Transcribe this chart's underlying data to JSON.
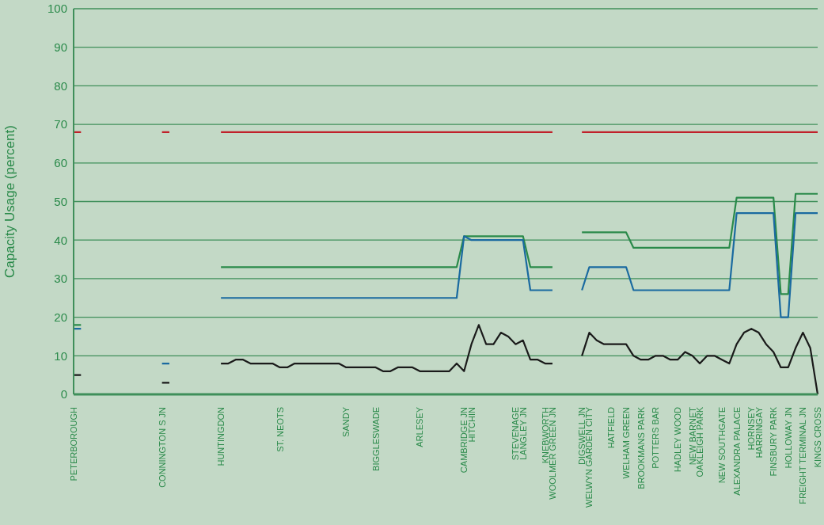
{
  "chart_data": {
    "type": "line",
    "ylabel": "Capacity Usage (percent)",
    "categories": [
      "PETERBOROUGH",
      null,
      null,
      null,
      null,
      null,
      null,
      null,
      null,
      null,
      null,
      null,
      "CONNINGTON S JN",
      null,
      null,
      null,
      null,
      null,
      null,
      null,
      "HUNTINGDON",
      null,
      null,
      null,
      null,
      null,
      null,
      null,
      "ST. NEOTS",
      null,
      null,
      null,
      null,
      null,
      null,
      null,
      null,
      "SANDY",
      null,
      null,
      null,
      "BIGGLESWADE",
      null,
      null,
      null,
      null,
      null,
      "ARLESEY",
      null,
      null,
      null,
      null,
      null,
      "CAMBRIDGE JN",
      "HITCHIN",
      null,
      null,
      null,
      null,
      null,
      "STEVENAGE",
      "LANGLEY JN",
      null,
      null,
      "KNEBWORTH",
      "WOOLMER GREEN JN",
      null,
      null,
      null,
      "DIGSWELL JN",
      "WELWYN GARDEN CITY",
      null,
      null,
      "HATFIELD",
      null,
      "WELHAM GREEN",
      null,
      "BROOKMANS PARK",
      null,
      "POTTERS BAR",
      null,
      null,
      "HADLEY WOOD",
      null,
      "NEW BARNET",
      "OAKLEIGH PARK",
      null,
      null,
      "NEW SOUTHGATE",
      null,
      "ALEXANDRA PALACE",
      null,
      "HORNSEY",
      "HARRINGAY",
      null,
      "FINSBURY PARK",
      null,
      "HOLLOWAY JN",
      null,
      "FREIGHT TERMINAL JN",
      null,
      "KINGS CROSS"
    ],
    "series": [
      {
        "color": "#c0202a",
        "values": [
          68,
          68,
          null,
          null,
          null,
          null,
          null,
          null,
          null,
          null,
          null,
          null,
          68,
          68,
          null,
          null,
          null,
          null,
          null,
          null,
          68,
          68,
          68,
          68,
          68,
          68,
          68,
          68,
          68,
          68,
          68,
          68,
          68,
          68,
          68,
          68,
          68,
          68,
          68,
          68,
          68,
          68,
          68,
          68,
          68,
          68,
          68,
          68,
          68,
          68,
          68,
          68,
          68,
          68,
          68,
          68,
          68,
          68,
          68,
          68,
          68,
          68,
          68,
          68,
          68,
          68,
          null,
          null,
          null,
          68,
          68,
          68,
          68,
          68,
          68,
          68,
          68,
          68,
          68,
          68,
          68,
          68,
          68,
          68,
          68,
          68,
          68,
          68,
          68,
          68,
          68,
          68,
          68,
          68,
          68,
          68,
          68,
          68,
          68,
          68,
          68,
          68
        ]
      },
      {
        "color": "#2a8a4a",
        "values": [
          18,
          18,
          null,
          null,
          null,
          null,
          null,
          null,
          null,
          null,
          null,
          null,
          null,
          null,
          null,
          null,
          null,
          null,
          null,
          null,
          33,
          33,
          33,
          33,
          33,
          33,
          33,
          33,
          33,
          33,
          33,
          33,
          33,
          33,
          33,
          33,
          33,
          33,
          33,
          33,
          33,
          33,
          33,
          33,
          33,
          33,
          33,
          33,
          33,
          33,
          33,
          33,
          33,
          41,
          41,
          41,
          41,
          41,
          41,
          41,
          41,
          41,
          33,
          33,
          33,
          33,
          null,
          null,
          null,
          42,
          42,
          42,
          42,
          42,
          42,
          42,
          38,
          38,
          38,
          38,
          38,
          38,
          38,
          38,
          38,
          38,
          38,
          38,
          38,
          38,
          51,
          51,
          51,
          51,
          51,
          51,
          26,
          26,
          52,
          52,
          52,
          52
        ]
      },
      {
        "color": "#1a6aa0",
        "values": [
          17,
          17,
          null,
          null,
          null,
          null,
          null,
          null,
          null,
          null,
          null,
          null,
          8,
          8,
          null,
          null,
          null,
          null,
          null,
          null,
          25,
          25,
          25,
          25,
          25,
          25,
          25,
          25,
          25,
          25,
          25,
          25,
          25,
          25,
          25,
          25,
          25,
          25,
          25,
          25,
          25,
          25,
          25,
          25,
          25,
          25,
          25,
          25,
          25,
          25,
          25,
          25,
          25,
          41,
          40,
          40,
          40,
          40,
          40,
          40,
          40,
          40,
          27,
          27,
          27,
          27,
          null,
          null,
          null,
          27,
          33,
          33,
          33,
          33,
          33,
          33,
          27,
          27,
          27,
          27,
          27,
          27,
          27,
          27,
          27,
          27,
          27,
          27,
          27,
          27,
          47,
          47,
          47,
          47,
          47,
          47,
          20,
          20,
          47,
          47,
          47,
          47
        ]
      },
      {
        "color": "#1a1a1a",
        "values": [
          5,
          5,
          null,
          null,
          null,
          null,
          null,
          null,
          null,
          null,
          null,
          null,
          3,
          3,
          null,
          null,
          null,
          null,
          null,
          null,
          8,
          8,
          9,
          9,
          8,
          8,
          8,
          8,
          7,
          7,
          8,
          8,
          8,
          8,
          8,
          8,
          8,
          7,
          7,
          7,
          7,
          7,
          6,
          6,
          7,
          7,
          7,
          6,
          6,
          6,
          6,
          6,
          8,
          6,
          13,
          18,
          13,
          13,
          16,
          15,
          13,
          14,
          9,
          9,
          8,
          8,
          null,
          null,
          null,
          10,
          16,
          14,
          13,
          13,
          13,
          13,
          10,
          9,
          9,
          10,
          10,
          9,
          9,
          11,
          10,
          8,
          10,
          10,
          9,
          8,
          13,
          16,
          17,
          16,
          13,
          11,
          7,
          7,
          12,
          16,
          12,
          0
        ]
      }
    ],
    "ylim": [
      0,
      100
    ],
    "yticks": [
      0,
      10,
      20,
      30,
      40,
      50,
      60,
      70,
      80,
      90,
      100
    ],
    "grid": "y",
    "marker": "none",
    "line_style": "solid"
  }
}
